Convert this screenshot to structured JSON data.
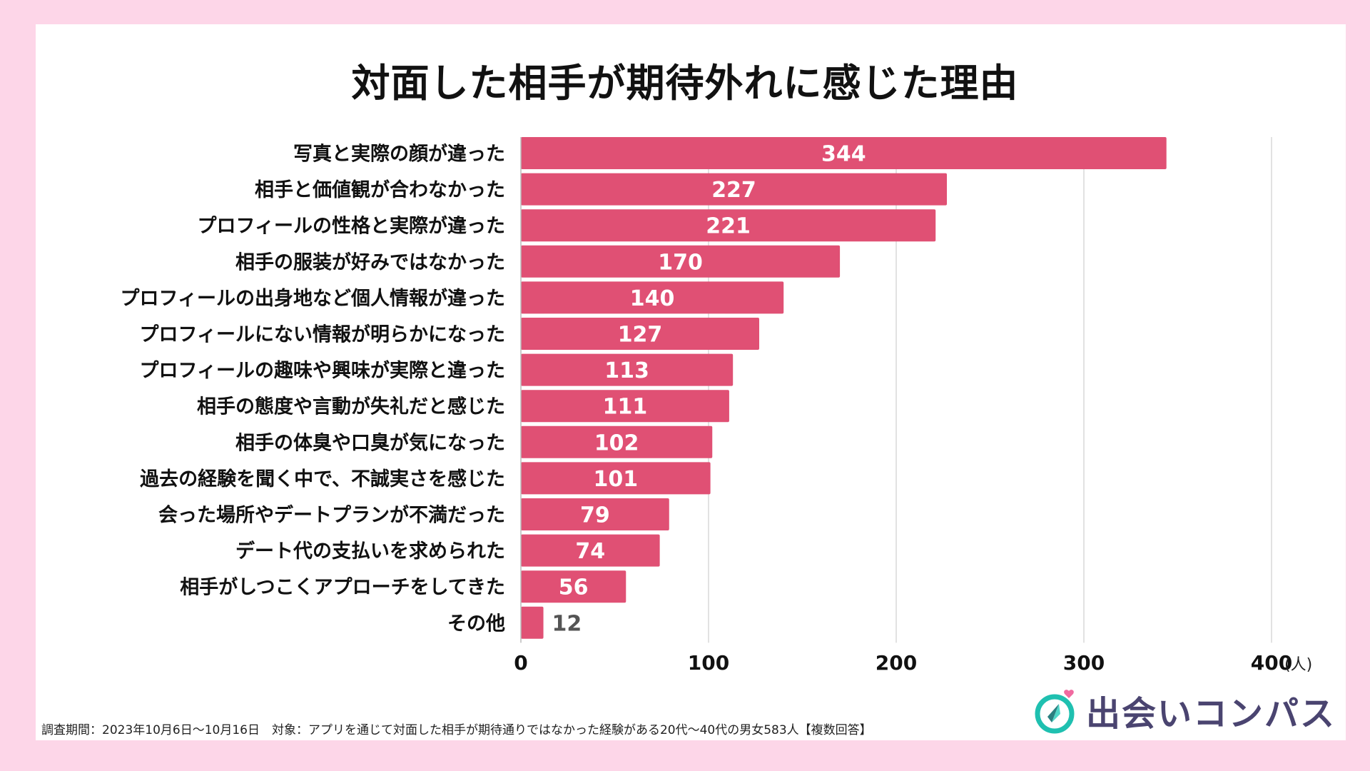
{
  "chart_data": {
    "type": "bar",
    "orientation": "horizontal",
    "title": "対面した相手が期待外れに感じた理由",
    "categories": [
      "写真と実際の顔が違った",
      "相手と価値観が合わなかった",
      "プロフィールの性格と実際が違った",
      "相手の服装が好みではなかった",
      "プロフィールの出身地など個人情報が違った",
      "プロフィールにない情報が明らかになった",
      "プロフィールの趣味や興味が実際と違った",
      "相手の態度や言動が失礼だと感じた",
      "相手の体臭や口臭が気になった",
      "過去の経験を聞く中で、不誠実さを感じた",
      "会った場所やデートプランが不満だった",
      "デート代の支払いを求められた",
      "相手がしつこくアプローチをしてきた",
      "その他"
    ],
    "values": [
      344,
      227,
      221,
      170,
      140,
      127,
      113,
      111,
      102,
      101,
      79,
      74,
      56,
      12
    ],
    "value_labels": [
      "344",
      "227",
      "221",
      "170",
      "140",
      "127",
      "113",
      "111",
      "102",
      "101",
      "79",
      "74",
      "56",
      "12"
    ],
    "xlim": [
      0,
      400
    ],
    "xticks": [
      "0",
      "100",
      "200",
      "300",
      "400"
    ],
    "xticks_values": [
      0,
      100,
      200,
      300,
      400
    ],
    "xunit": "(人)",
    "grid": true,
    "bar_color": "#e05074"
  },
  "footer": {
    "note": "調査期間：2023年10月6日〜10月16日　対象：アプリを通じて対面した相手が期待通りではなかった経験がある20代〜40代の男女583人【複数回答】"
  },
  "logo": {
    "text": "出会いコンパス"
  },
  "colors": {
    "background": "#fdd6e8",
    "bar": "#e05074",
    "logo_text": "#4a4470",
    "logo_ring": "#1fc0b0",
    "logo_heart": "#f06aa0"
  }
}
